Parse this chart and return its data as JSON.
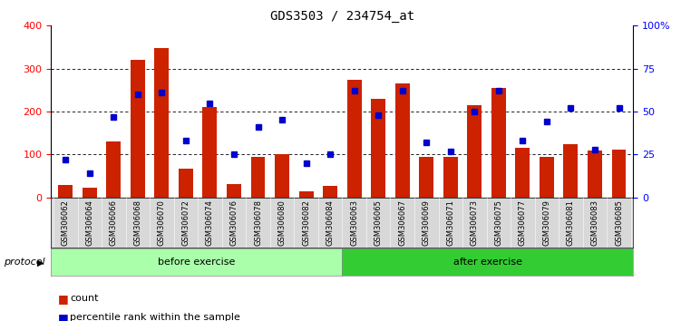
{
  "title": "GDS3503 / 234754_at",
  "samples": [
    "GSM306062",
    "GSM306064",
    "GSM306066",
    "GSM306068",
    "GSM306070",
    "GSM306072",
    "GSM306074",
    "GSM306076",
    "GSM306078",
    "GSM306080",
    "GSM306082",
    "GSM306084",
    "GSM306063",
    "GSM306065",
    "GSM306067",
    "GSM306069",
    "GSM306071",
    "GSM306073",
    "GSM306075",
    "GSM306077",
    "GSM306079",
    "GSM306081",
    "GSM306083",
    "GSM306085"
  ],
  "counts": [
    28,
    22,
    130,
    320,
    348,
    68,
    210,
    32,
    95,
    100,
    15,
    26,
    275,
    230,
    265,
    95,
    95,
    215,
    255,
    115,
    95,
    125,
    110,
    112
  ],
  "percentile_pct": [
    22,
    14,
    47,
    60,
    61,
    33,
    55,
    25,
    41,
    45,
    20,
    25,
    62,
    48,
    62,
    32,
    27,
    50,
    62,
    33,
    44,
    52,
    28,
    52
  ],
  "before_exercise_count": 12,
  "after_exercise_count": 12,
  "bar_color": "#cc2200",
  "dot_color": "#0000cc",
  "ylim_left": [
    0,
    400
  ],
  "ylim_right": [
    0,
    100
  ],
  "yticks_left": [
    0,
    100,
    200,
    300,
    400
  ],
  "yticks_right": [
    0,
    25,
    50,
    75,
    100
  ],
  "grid_values": [
    100,
    200,
    300
  ],
  "before_color": "#aaffaa",
  "after_color": "#33cc33",
  "before_label": "before exercise",
  "after_label": "after exercise",
  "protocol_label": "protocol",
  "legend_count": "count",
  "legend_percentile": "percentile rank within the sample"
}
